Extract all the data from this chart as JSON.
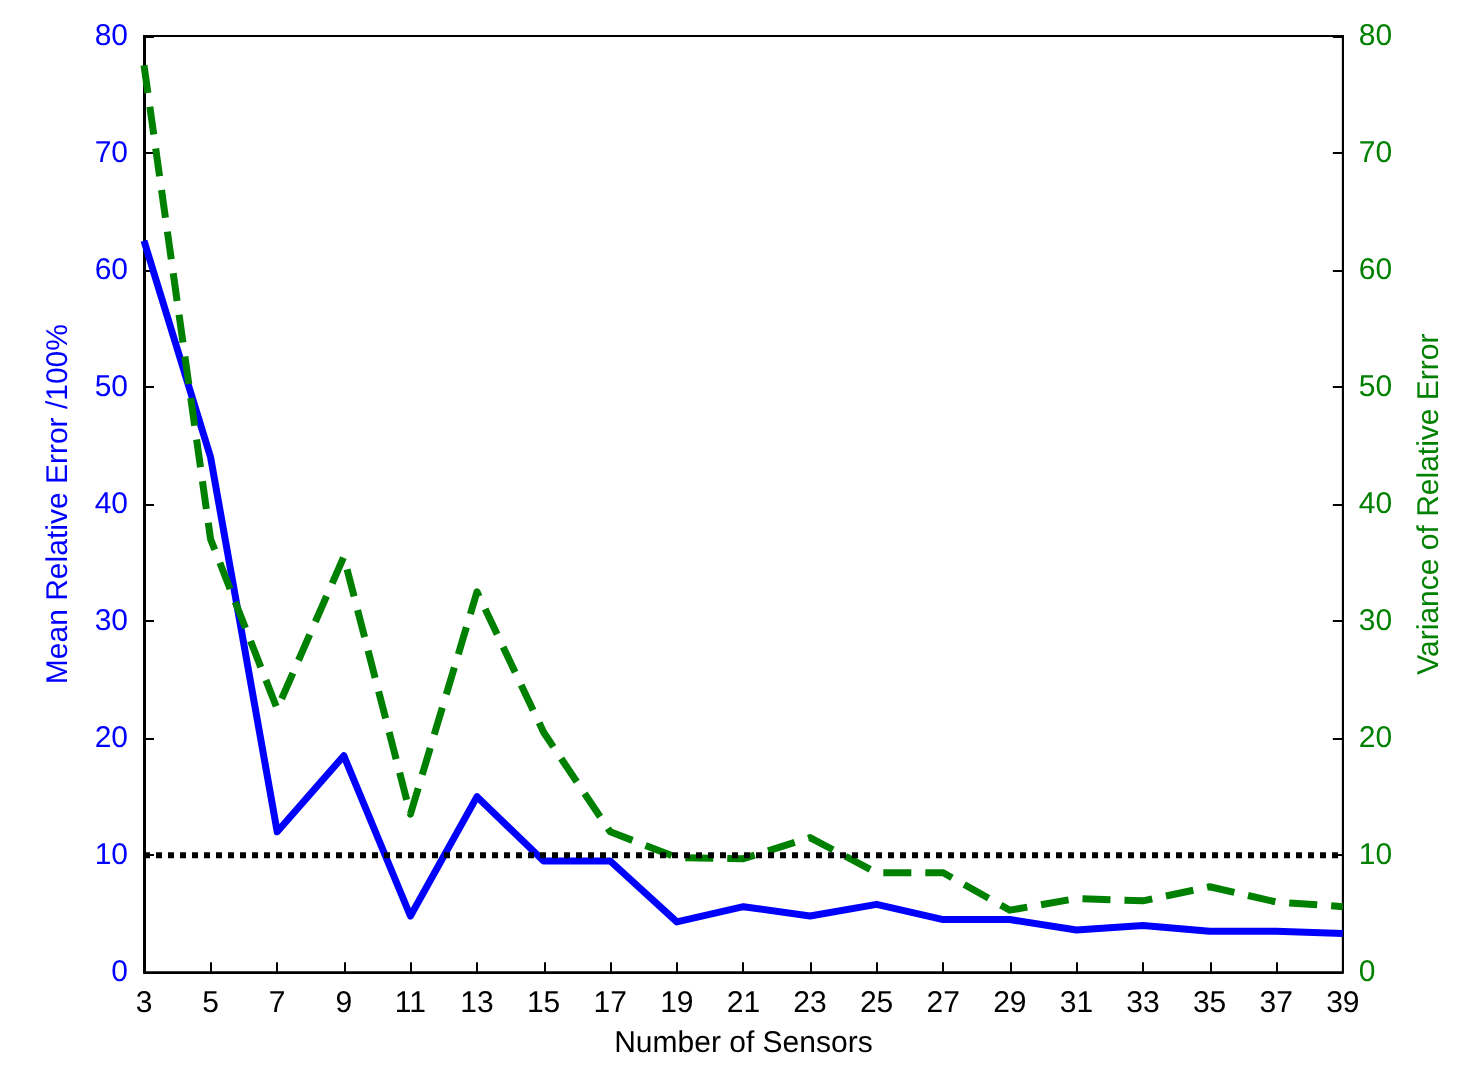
{
  "chart_data": {
    "type": "line",
    "xlabel": "Number of Sensors",
    "ylabel": "Mean Relative Error /100%",
    "y2label": "Variance of Relative Error",
    "x": [
      3,
      5,
      7,
      9,
      11,
      13,
      15,
      17,
      19,
      21,
      23,
      25,
      27,
      29,
      31,
      33,
      35,
      37,
      39
    ],
    "series": [
      {
        "color": "#0000ff",
        "line_style": "solid",
        "values": [
          62.5,
          44,
          12,
          18.5,
          4.8,
          15,
          9.5,
          9.5,
          4.3,
          5.6,
          4.8,
          5.8,
          4.5,
          4.5,
          3.6,
          4,
          3.5,
          3.5,
          3.3
        ]
      },
      {
        "color": "#008000",
        "line_style": "dashed",
        "axis": "y2",
        "values": [
          77.5,
          37,
          22.5,
          35.5,
          13.5,
          32.5,
          20.5,
          12,
          9.8,
          9.7,
          11.5,
          8.5,
          8.5,
          5.3,
          6.3,
          6.1,
          7.3,
          6,
          5.6
        ]
      }
    ],
    "xlim": [
      3,
      39
    ],
    "xticks": [
      3,
      5,
      7,
      9,
      11,
      13,
      15,
      17,
      19,
      21,
      23,
      25,
      27,
      29,
      31,
      33,
      35,
      37,
      39
    ],
    "ylim": [
      0,
      80
    ],
    "yticks": [
      0,
      10,
      20,
      30,
      40,
      50,
      60,
      70,
      80
    ],
    "y2lim": [
      0,
      80
    ],
    "y2ticks": [
      0,
      10,
      20,
      30,
      40,
      50,
      60,
      70,
      80
    ],
    "ref_lines": [
      {
        "axis": "y",
        "value": 10,
        "color": "#000000",
        "line_style": "dotted"
      }
    ]
  }
}
